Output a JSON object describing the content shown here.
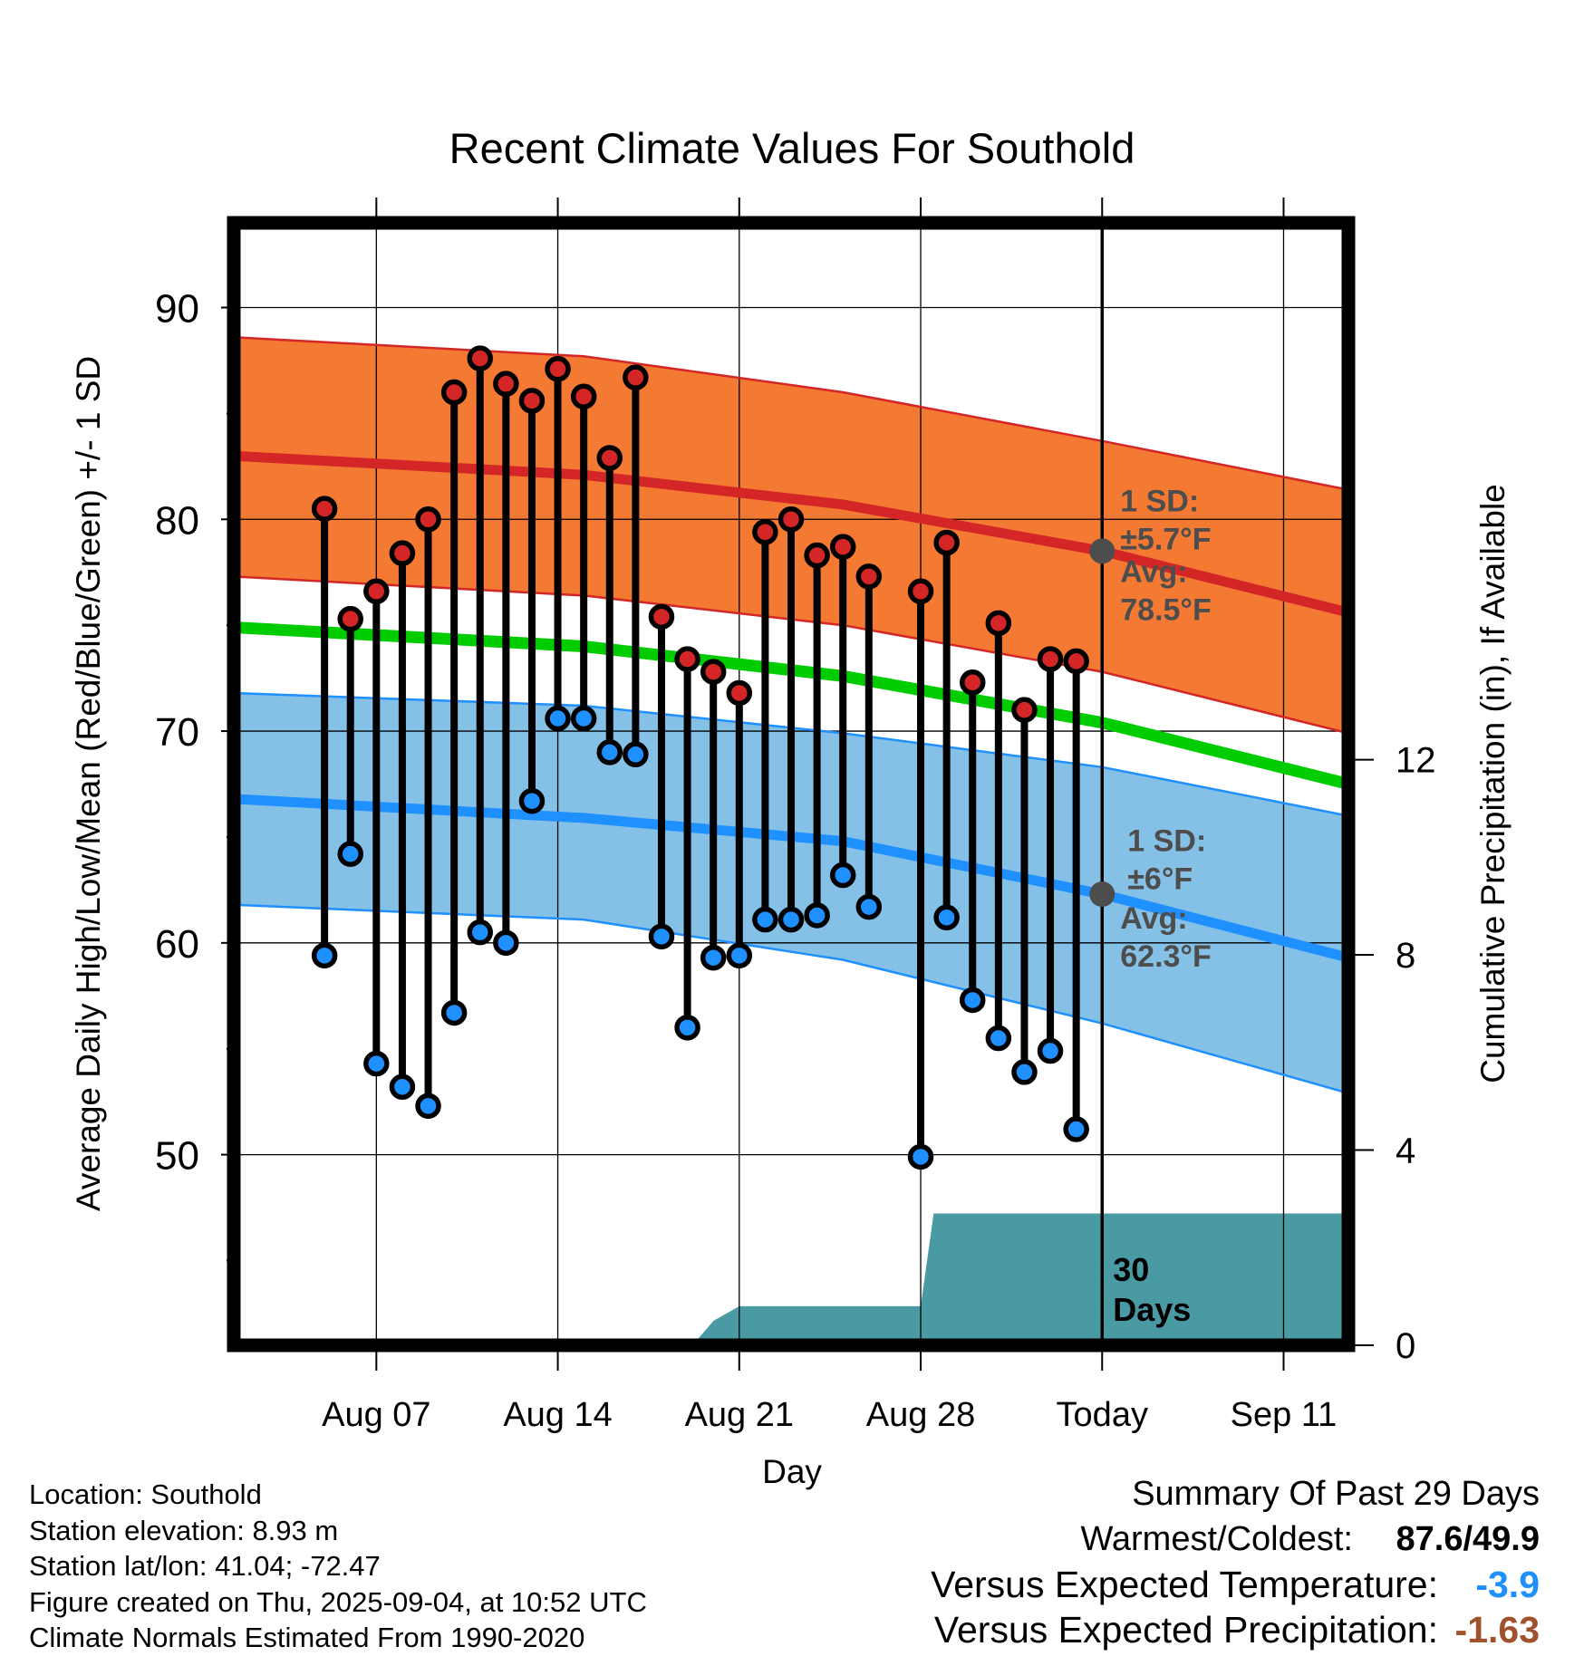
{
  "chart_data": {
    "type": "line",
    "title": "Recent Climate Values For Southold",
    "xlabel": "Day",
    "ylabel": "Average Daily High/Low/Mean (Red/Blue/Green) +/- 1 SD",
    "y2label": "Cumulative Precipitation (in), If Available",
    "ylim": [
      41,
      94
    ],
    "y2lim": [
      0,
      23
    ],
    "yticks": [
      50,
      60,
      70,
      80,
      90
    ],
    "y2ticks": [
      0,
      4,
      8,
      12
    ],
    "xlim_days": [
      -33.5,
      9.5
    ],
    "xticks": [
      {
        "label": "Aug 07",
        "day": -28
      },
      {
        "label": "Aug 14",
        "day": -21
      },
      {
        "label": "Aug 21",
        "day": -14
      },
      {
        "label": "Aug 28",
        "day": -7
      },
      {
        "label": "Today",
        "day": 0
      },
      {
        "label": "Sep 11",
        "day": 7
      }
    ],
    "grid": true,
    "today_marker": {
      "label": "30 Days"
    },
    "normals": {
      "high_upper": [
        [
          -33.5,
          88.6
        ],
        [
          -20,
          87.7
        ],
        [
          -10,
          86.0
        ],
        [
          0,
          83.7
        ],
        [
          9.5,
          81.4
        ]
      ],
      "high_mean": [
        [
          -33.5,
          83.0
        ],
        [
          -20,
          82.1
        ],
        [
          -10,
          80.7
        ],
        [
          0,
          78.5
        ],
        [
          9.5,
          75.6
        ]
      ],
      "high_lower": [
        [
          -33.5,
          77.3
        ],
        [
          -20,
          76.4
        ],
        [
          -10,
          75.0
        ],
        [
          0,
          72.8
        ],
        [
          9.5,
          69.9
        ]
      ],
      "mean": [
        [
          -33.5,
          74.9
        ],
        [
          -20,
          74.0
        ],
        [
          -10,
          72.6
        ],
        [
          0,
          70.4
        ],
        [
          9.5,
          67.5
        ]
      ],
      "low_upper": [
        [
          -33.5,
          71.8
        ],
        [
          -20,
          71.2
        ],
        [
          -10,
          69.9
        ],
        [
          0,
          68.3
        ],
        [
          9.5,
          66.0
        ]
      ],
      "low_mean": [
        [
          -33.5,
          66.8
        ],
        [
          -20,
          65.9
        ],
        [
          -10,
          64.8
        ],
        [
          0,
          62.3
        ],
        [
          9.5,
          59.3
        ]
      ],
      "low_lower": [
        [
          -33.5,
          61.8
        ],
        [
          -20,
          61.1
        ],
        [
          -10,
          59.2
        ],
        [
          0,
          56.2
        ],
        [
          9.5,
          52.9
        ]
      ]
    },
    "normal_colors": {
      "high_band": "#f47932",
      "high_line": "#d42626",
      "mean_line": "#00cc00",
      "low_band": "#85c1e6",
      "low_line": "#1e90ff",
      "precip": "#4a9aa4"
    },
    "annotations": {
      "high_sd": {
        "label": "1 SD:",
        "value": "±5.7°F",
        "day": 0,
        "y": 80.2
      },
      "high_avg": {
        "label": "Avg:",
        "value": "78.5°F",
        "day": 0,
        "y": 78.5
      },
      "low_sd": {
        "label": "1 SD:",
        "value": "±6°F",
        "day": 0,
        "y": 64.0
      },
      "low_avg": {
        "label": "Avg:",
        "value": "62.3°F",
        "day": 0,
        "y": 62.3
      }
    },
    "observations": [
      {
        "day": -30,
        "high": 80.5,
        "low": 59.4
      },
      {
        "day": -29,
        "high": 75.3,
        "low": 64.2
      },
      {
        "day": -28,
        "high": 76.6,
        "low": 54.3
      },
      {
        "day": -27,
        "high": 78.4,
        "low": 53.2
      },
      {
        "day": -26,
        "high": 80.0,
        "low": 52.3
      },
      {
        "day": -25,
        "high": 86.0,
        "low": 56.7
      },
      {
        "day": -24,
        "high": 87.6,
        "low": 60.5
      },
      {
        "day": -23,
        "high": 86.4,
        "low": 60.0
      },
      {
        "day": -22,
        "high": 85.6,
        "low": 66.7
      },
      {
        "day": -21,
        "high": 87.1,
        "low": 70.6
      },
      {
        "day": -20,
        "high": 85.8,
        "low": 70.6
      },
      {
        "day": -19,
        "high": 82.9,
        "low": 69.0
      },
      {
        "day": -18,
        "high": 86.7,
        "low": 68.9
      },
      {
        "day": -17,
        "high": 75.4,
        "low": 60.3
      },
      {
        "day": -16,
        "high": 73.4,
        "low": 56.0
      },
      {
        "day": -15,
        "high": 72.8,
        "low": 59.3
      },
      {
        "day": -14,
        "high": 71.8,
        "low": 59.4
      },
      {
        "day": -13,
        "high": 79.4,
        "low": 61.1
      },
      {
        "day": -12,
        "high": 80.0,
        "low": 61.1
      },
      {
        "day": -11,
        "high": 78.3,
        "low": 61.3
      },
      {
        "day": -10,
        "high": 78.7,
        "low": 63.2
      },
      {
        "day": -9,
        "high": 77.3,
        "low": 61.7
      },
      {
        "day": -7,
        "high": 76.6,
        "low": 49.9
      },
      {
        "day": -6,
        "high": 78.9,
        "low": 61.2
      },
      {
        "day": -5,
        "high": 72.3,
        "low": 57.3
      },
      {
        "day": -4,
        "high": 75.1,
        "low": 55.5
      },
      {
        "day": -3,
        "high": 71.0,
        "low": 53.9
      },
      {
        "day": -2,
        "high": 73.4,
        "low": 54.9
      },
      {
        "day": -1,
        "high": 73.3,
        "low": 51.2
      }
    ],
    "precipitation_cumulative": [
      [
        -15.8,
        0
      ],
      [
        -15.0,
        0.5
      ],
      [
        -14.0,
        0.8
      ],
      [
        -7.0,
        0.8
      ],
      [
        -6.5,
        2.7
      ],
      [
        9.5,
        2.7
      ]
    ]
  },
  "footer": [
    "Location: Southold",
    "Station elevation: 8.93 m",
    "Station lat/lon: 41.04; -72.47",
    "Figure created on Thu, 2025-09-04, at 10:52 UTC",
    "Climate Normals Estimated From 1990-2020"
  ],
  "summary": {
    "heading": "Summary Of Past 29 Days",
    "warmest_coldest_label": "Warmest/Coldest:",
    "warmest_coldest_value": "87.6/49.9",
    "temp_label": "Versus Expected Temperature:",
    "temp_value": "-3.9",
    "temp_color": "#1e90ff",
    "precip_label": "Versus Expected Precipitation:",
    "precip_value": "-1.63",
    "precip_color": "#a0522d"
  }
}
